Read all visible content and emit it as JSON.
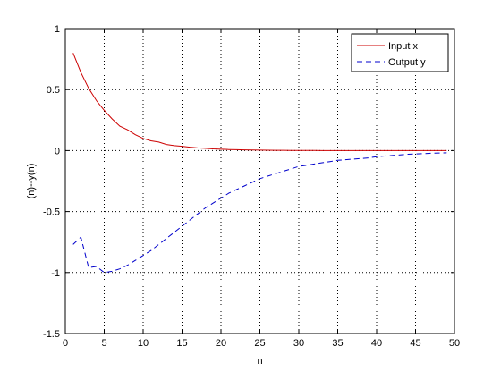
{
  "chart_data": {
    "type": "line",
    "title": "",
    "xlabel": "n",
    "ylabel": "(n)--y(n)",
    "xlim": [
      0,
      50
    ],
    "ylim": [
      -1.5,
      1
    ],
    "xticks": [
      0,
      5,
      10,
      15,
      20,
      25,
      30,
      35,
      40,
      45,
      50
    ],
    "yticks": [
      -1.5,
      -1,
      -0.5,
      0,
      0.5,
      1
    ],
    "xtick_labels": [
      "0",
      "5",
      "10",
      "15",
      "20",
      "25",
      "30",
      "35",
      "40",
      "45",
      "50"
    ],
    "ytick_labels": [
      "-1.5",
      "-1",
      "-0.5",
      "0",
      "0.5",
      "1"
    ],
    "grid": true,
    "legend_position": "top-right",
    "series": [
      {
        "name": "Input x",
        "color": "#cc0000",
        "line_style": "solid",
        "x": [
          1,
          2,
          3,
          4,
          5,
          6,
          7,
          8,
          9,
          10,
          11,
          12,
          13,
          14,
          15,
          16,
          17,
          18,
          19,
          20,
          21,
          22,
          23,
          24,
          25,
          26,
          27,
          28,
          29,
          30,
          31,
          32,
          33,
          34,
          35,
          36,
          37,
          38,
          39,
          40,
          41,
          42,
          43,
          44,
          45,
          46,
          47,
          48,
          49
        ],
        "y": [
          0.8,
          0.64,
          0.51,
          0.41,
          0.33,
          0.26,
          0.2,
          0.17,
          0.13,
          0.1,
          0.08,
          0.07,
          0.05,
          0.04,
          0.035,
          0.028,
          0.022,
          0.018,
          0.014,
          0.011,
          0.009,
          0.007,
          0.006,
          0.005,
          0.004,
          0.003,
          0.002,
          0.002,
          0.001,
          0.001,
          0.001,
          0.001,
          0,
          0,
          0,
          0,
          0,
          0,
          0,
          0,
          0,
          0,
          0,
          0,
          0,
          0,
          0,
          0,
          0
        ]
      },
      {
        "name": "Output y",
        "color": "#0000cc",
        "line_style": "dashed",
        "x": [
          1,
          2,
          3,
          4,
          5,
          6,
          7,
          8,
          9,
          10,
          11,
          12,
          13,
          14,
          15,
          16,
          17,
          18,
          19,
          20,
          21,
          22,
          23,
          24,
          25,
          26,
          27,
          28,
          29,
          30,
          31,
          32,
          33,
          34,
          35,
          36,
          37,
          38,
          39,
          40,
          41,
          42,
          43,
          44,
          45,
          46,
          47,
          48,
          49
        ],
        "y": [
          -0.77,
          -0.71,
          -0.96,
          -0.95,
          -1.0,
          -0.99,
          -0.97,
          -0.94,
          -0.9,
          -0.86,
          -0.82,
          -0.77,
          -0.72,
          -0.67,
          -0.62,
          -0.57,
          -0.52,
          -0.47,
          -0.43,
          -0.39,
          -0.35,
          -0.32,
          -0.29,
          -0.26,
          -0.23,
          -0.21,
          -0.19,
          -0.17,
          -0.15,
          -0.13,
          -0.12,
          -0.11,
          -0.1,
          -0.09,
          -0.08,
          -0.075,
          -0.07,
          -0.065,
          -0.06,
          -0.05,
          -0.045,
          -0.04,
          -0.035,
          -0.03,
          -0.028,
          -0.025,
          -0.022,
          -0.02,
          -0.018
        ]
      }
    ]
  }
}
